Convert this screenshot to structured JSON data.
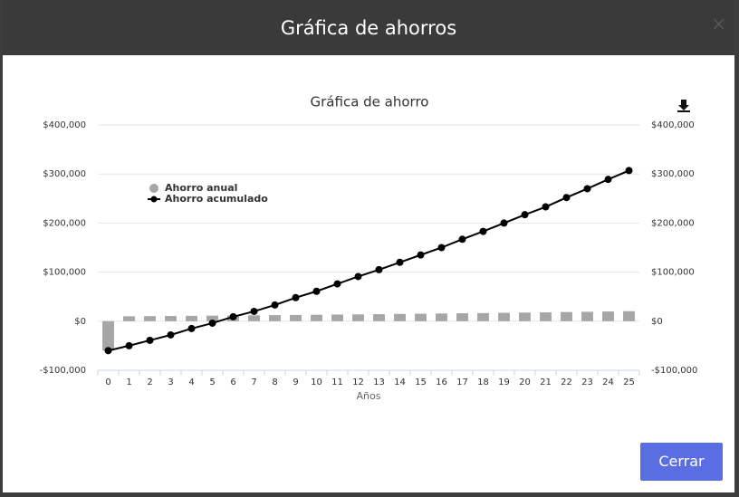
{
  "modal": {
    "title": "Gráfica de ahorros",
    "close": "×",
    "button": "Cerrar"
  },
  "chart_data": {
    "type": "bar",
    "title": "Gráfica de ahorro",
    "xlabel": "Años",
    "categories": [
      "0",
      "1",
      "2",
      "3",
      "4",
      "5",
      "6",
      "7",
      "8",
      "9",
      "10",
      "11",
      "12",
      "13",
      "14",
      "15",
      "16",
      "17",
      "18",
      "19",
      "20",
      "21",
      "22",
      "23",
      "24",
      "25"
    ],
    "series": [
      {
        "name": "Ahorro anual",
        "type": "bar",
        "color": "#a6a6a6",
        "values": [
          -60000,
          10000,
          10300,
          10600,
          10900,
          11300,
          11600,
          12000,
          12400,
          12700,
          13100,
          13500,
          13900,
          14300,
          14800,
          15200,
          15700,
          16100,
          16600,
          17100,
          17600,
          18100,
          18700,
          19200,
          19800,
          20400
        ]
      },
      {
        "name": "Ahorro acumulado",
        "type": "line",
        "color": "#000000",
        "axis": "y2",
        "values": [
          -60000,
          -50000,
          -39000,
          -28000,
          -15000,
          -4000,
          9000,
          20000,
          33000,
          48000,
          61000,
          76000,
          91000,
          105000,
          120000,
          135000,
          150000,
          167000,
          183000,
          200000,
          217000,
          233000,
          252000,
          270000,
          289000,
          307000
        ]
      }
    ],
    "ylim": [
      -100000,
      400000
    ],
    "yticks": [
      {
        "value": -100000,
        "label": "-$100,000"
      },
      {
        "value": 0,
        "label": "$0"
      },
      {
        "value": 100000,
        "label": "$100,000"
      },
      {
        "value": 200000,
        "label": "$200,000"
      },
      {
        "value": 300000,
        "label": "$300,000"
      },
      {
        "value": 400000,
        "label": "$400,000"
      }
    ],
    "y2lim": [
      -100000,
      400000
    ],
    "y2ticks": [
      {
        "value": -100000,
        "label": "-$100,000"
      },
      {
        "value": 0,
        "label": "$0"
      },
      {
        "value": 100000,
        "label": "$100,000"
      },
      {
        "value": 200000,
        "label": "$200,000"
      },
      {
        "value": 300000,
        "label": "$300,000"
      },
      {
        "value": 400000,
        "label": "$400,000"
      }
    ],
    "grid": true
  }
}
